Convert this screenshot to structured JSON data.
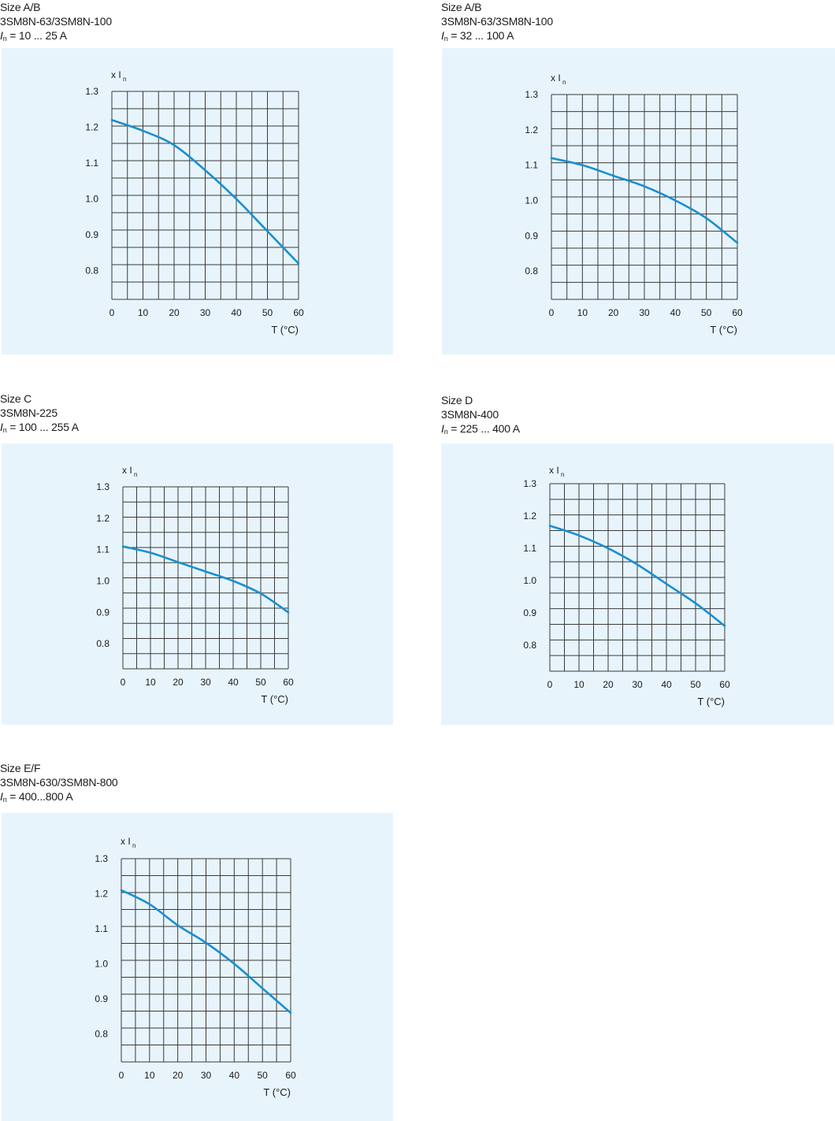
{
  "chart_data": [
    {
      "type": "line",
      "caption": [
        "Size A/B",
        "3SM8N-63/3SM8N-100"
      ],
      "current_range": "= 10 ... 25 A",
      "current_symbol": "I",
      "current_subscript": "n",
      "ylabel": "x I",
      "ylabel_subscript": "n",
      "xlabel": "T (°C)",
      "xlim": [
        0,
        60
      ],
      "ylim": [
        0.72,
        1.3
      ],
      "x_ticks": [
        "0",
        "10",
        "20",
        "30",
        "40",
        "50",
        "60"
      ],
      "y_ticks": [
        "1.3",
        "1.2",
        "1.1",
        "1.0",
        "0.9",
        "0.8"
      ],
      "y_tick_values": [
        1.3,
        1.2,
        1.1,
        1.0,
        0.9,
        0.8
      ],
      "grid": true,
      "series": [
        {
          "x": [
            0,
            10,
            20,
            30,
            40,
            50,
            60
          ],
          "y": [
            1.22,
            1.19,
            1.15,
            1.08,
            1.0,
            0.91,
            0.82
          ],
          "color": "#1a8fce"
        }
      ]
    },
    {
      "type": "line",
      "caption": [
        "Size A/B",
        "3SM8N-63/3SM8N-100"
      ],
      "current_range": "= 32 ... 100 A",
      "current_symbol": "I",
      "current_subscript": "n",
      "ylabel": "x I",
      "ylabel_subscript": "n",
      "xlabel": "T (°C)",
      "xlim": [
        0,
        60
      ],
      "ylim": [
        0.72,
        1.3
      ],
      "x_ticks": [
        "0",
        "10",
        "20",
        "30",
        "40",
        "50",
        "60"
      ],
      "y_ticks": [
        "1.3",
        "1.2",
        "1.1",
        "1.0",
        "0.9",
        "0.8"
      ],
      "y_tick_values": [
        1.3,
        1.2,
        1.1,
        1.0,
        0.9,
        0.8
      ],
      "grid": true,
      "series": [
        {
          "x": [
            0,
            10,
            20,
            30,
            40,
            50,
            60
          ],
          "y": [
            1.12,
            1.1,
            1.07,
            1.04,
            1.0,
            0.95,
            0.88
          ],
          "color": "#1a8fce"
        }
      ]
    },
    {
      "type": "line",
      "caption": [
        "Size C",
        "3SM8N-225"
      ],
      "current_range": "= 100 ... 255 A",
      "current_symbol": "I",
      "current_subscript": "n",
      "ylabel": "x I",
      "ylabel_subscript": "n",
      "xlabel": "T (°C)",
      "xlim": [
        0,
        60
      ],
      "ylim": [
        0.72,
        1.3
      ],
      "x_ticks": [
        "0",
        "10",
        "20",
        "30",
        "40",
        "50",
        "60"
      ],
      "y_ticks": [
        "1.3",
        "1.2",
        "1.1",
        "1.0",
        "0.9",
        "0.8"
      ],
      "y_tick_values": [
        1.3,
        1.2,
        1.1,
        1.0,
        0.9,
        0.8
      ],
      "grid": true,
      "series": [
        {
          "x": [
            0,
            10,
            20,
            30,
            40,
            50,
            60
          ],
          "y": [
            1.11,
            1.09,
            1.06,
            1.03,
            1.0,
            0.96,
            0.9
          ],
          "color": "#1a8fce"
        }
      ]
    },
    {
      "type": "line",
      "caption": [
        "Size D",
        "3SM8N-400"
      ],
      "current_range": "= 225 ... 400 A",
      "current_symbol": "I",
      "current_subscript": "n",
      "ylabel": "x I",
      "ylabel_subscript": "n",
      "xlabel": "T (°C)",
      "xlim": [
        0,
        60
      ],
      "ylim": [
        0.72,
        1.3
      ],
      "x_ticks": [
        "0",
        "10",
        "20",
        "30",
        "40",
        "50",
        "60"
      ],
      "y_ticks": [
        "1.3",
        "1.2",
        "1.1",
        "1.0",
        "0.9",
        "0.8"
      ],
      "y_tick_values": [
        1.3,
        1.2,
        1.1,
        1.0,
        0.9,
        0.8
      ],
      "grid": true,
      "series": [
        {
          "x": [
            0,
            10,
            20,
            30,
            40,
            50,
            60
          ],
          "y": [
            1.17,
            1.14,
            1.1,
            1.05,
            0.99,
            0.93,
            0.86
          ],
          "color": "#1a8fce"
        }
      ]
    },
    {
      "type": "line",
      "caption": [
        "Size E/F",
        "3SM8N-630/3SM8N-800"
      ],
      "current_range": "= 400...800 A",
      "current_symbol": "I",
      "current_subscript": "n",
      "ylabel": "x I",
      "ylabel_subscript": "n",
      "xlabel": "T (°C)",
      "xlim": [
        0,
        60
      ],
      "ylim": [
        0.72,
        1.3
      ],
      "x_ticks": [
        "0",
        "10",
        "20",
        "30",
        "40",
        "50",
        "60"
      ],
      "y_ticks": [
        "1.3",
        "1.2",
        "1.1",
        "1.0",
        "0.9",
        "0.8"
      ],
      "y_tick_values": [
        1.3,
        1.2,
        1.1,
        1.0,
        0.9,
        0.8
      ],
      "grid": true,
      "series": [
        {
          "x": [
            0,
            10,
            20,
            30,
            40,
            50,
            60
          ],
          "y": [
            1.21,
            1.17,
            1.11,
            1.06,
            1.0,
            0.93,
            0.86
          ],
          "color": "#1a8fce"
        }
      ]
    }
  ],
  "colors": {
    "panel_background": "#e7f4fc",
    "grid_line": "#3a3a3a",
    "curve": "#1a8fce",
    "text": "#1a1a1a"
  }
}
